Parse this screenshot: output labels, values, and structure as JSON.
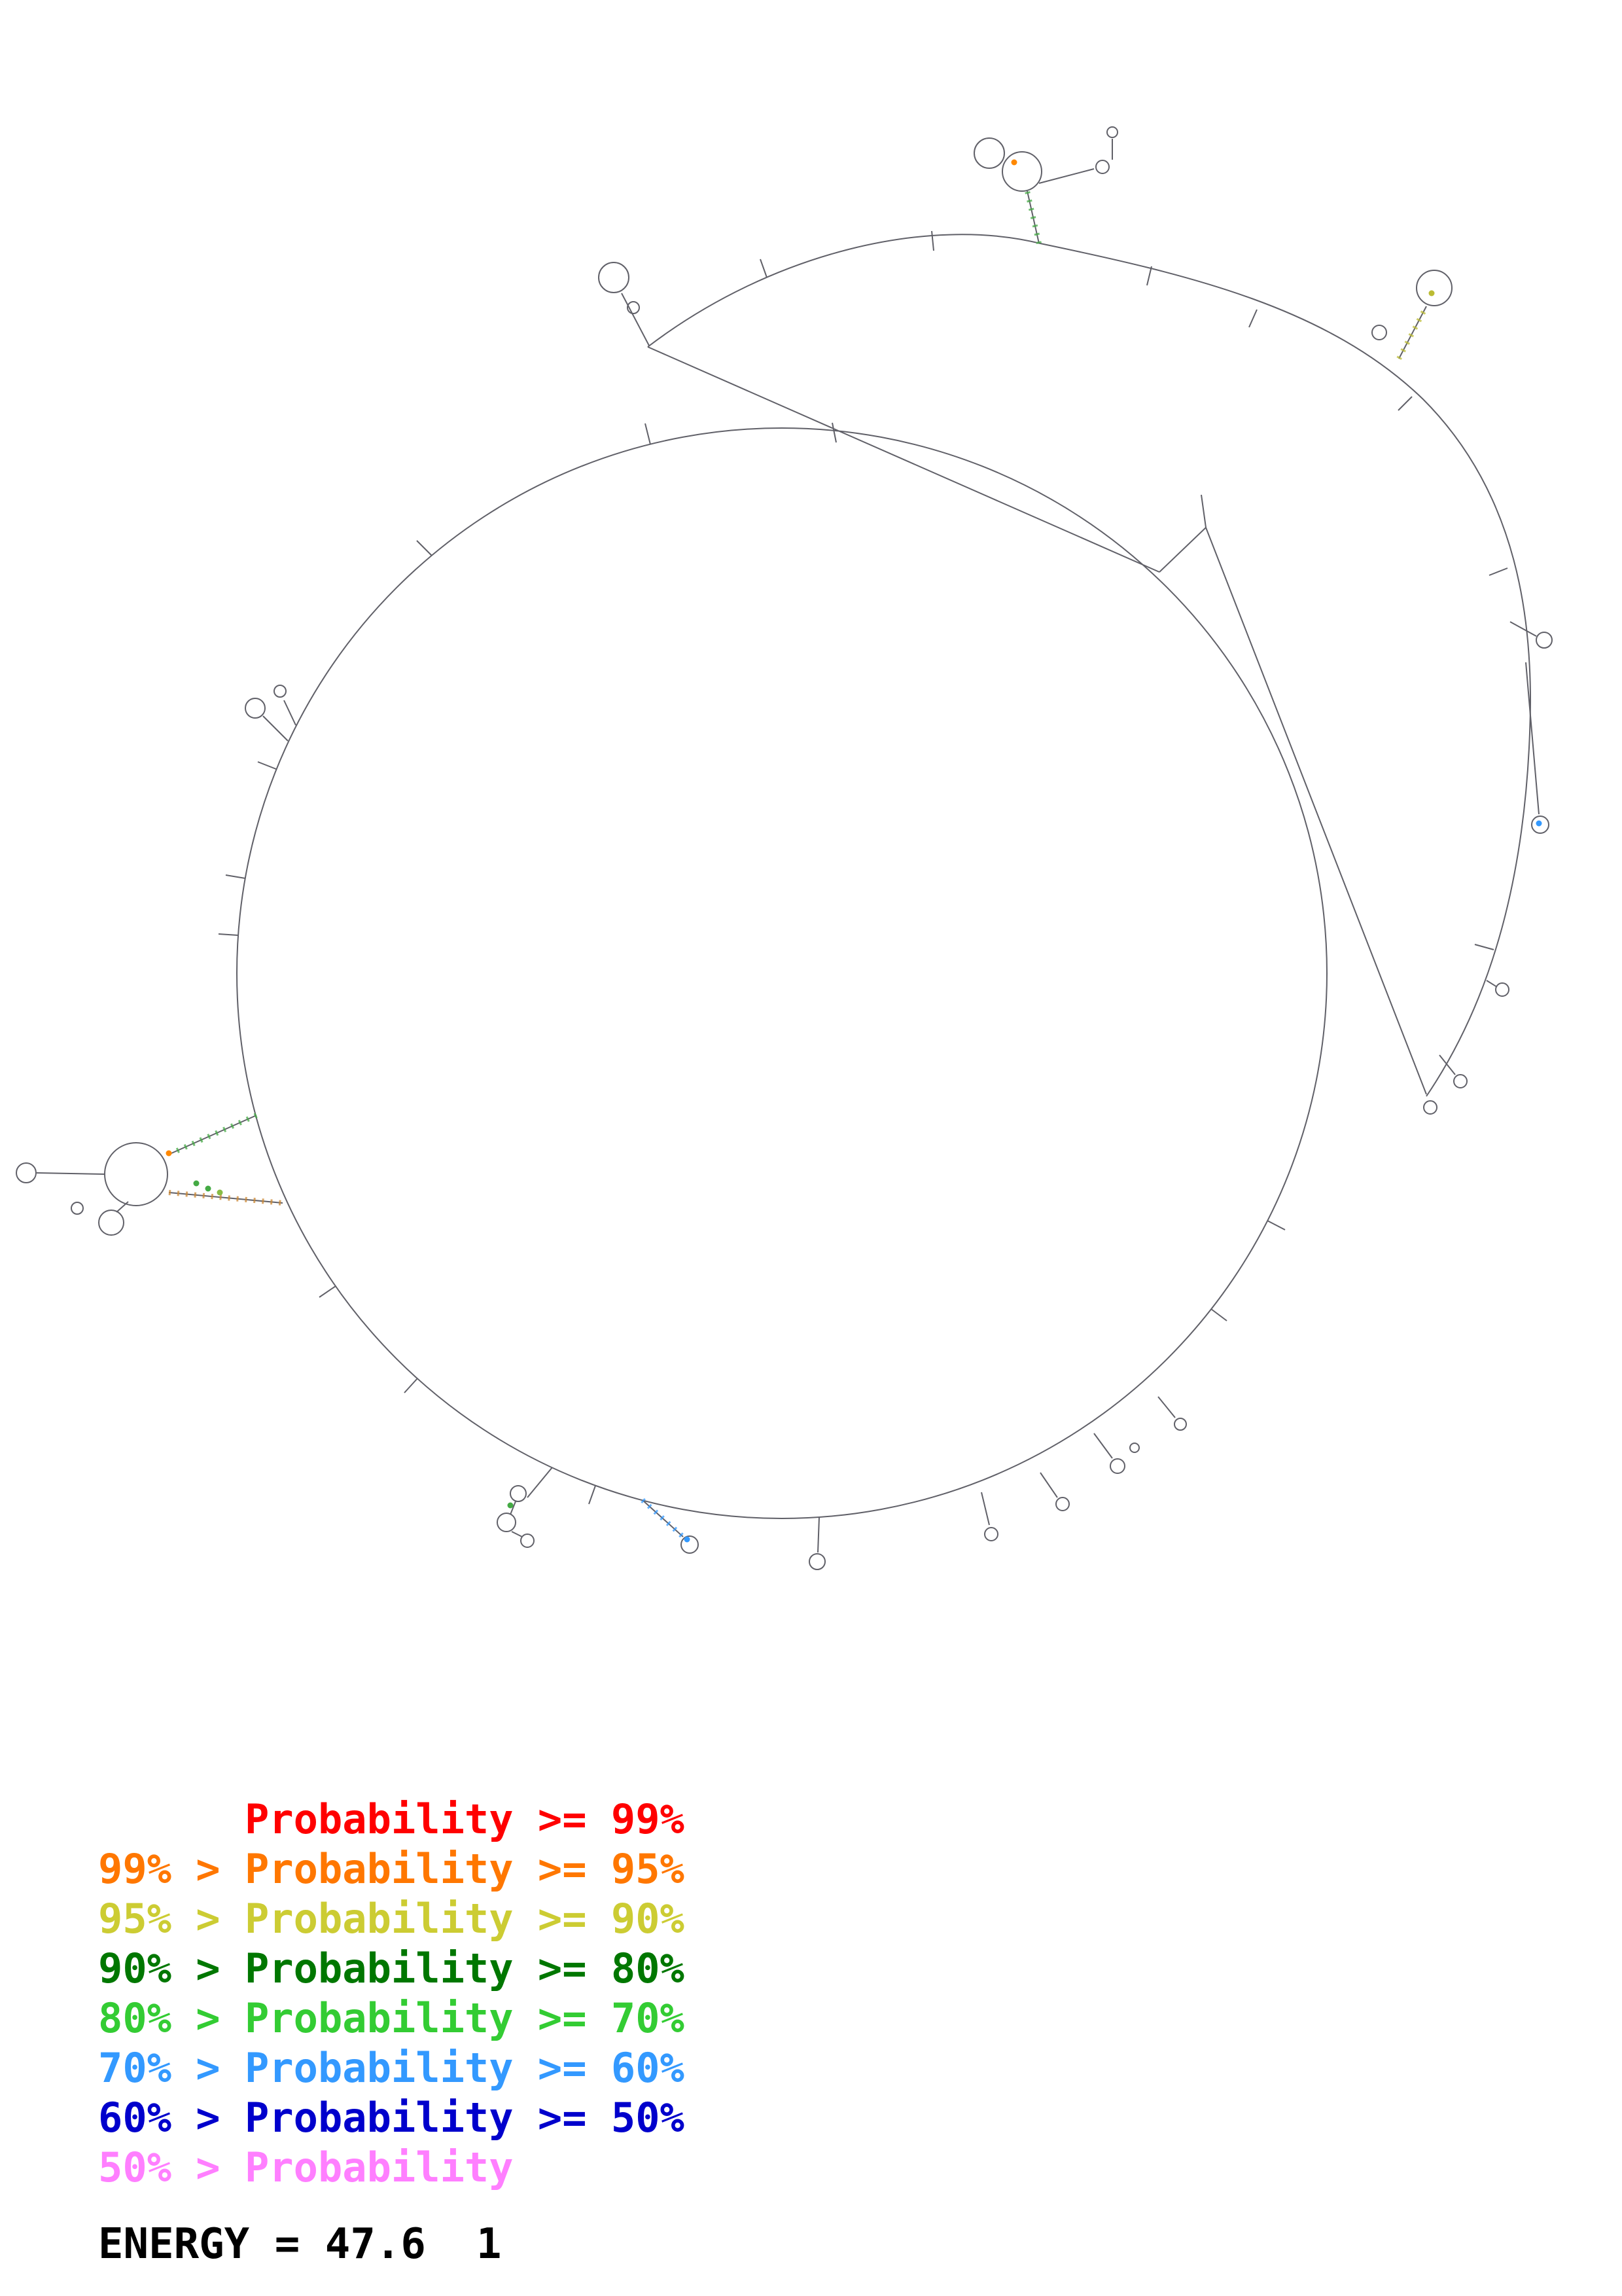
{
  "figure": {
    "type": "rna-secondary-structure-probability-plot",
    "backbone_color": "#606068",
    "accent_colors": {
      "green": "#44aa44",
      "light_green": "#88bb44",
      "orange": "#ff8800",
      "olive": "#bbbb33",
      "sky_blue": "#3399ff"
    }
  },
  "legend": {
    "entries": [
      {
        "text": "      Probability >= 99%",
        "color": "#ff0000"
      },
      {
        "text": "99% > Probability >= 95%",
        "color": "#ff7700"
      },
      {
        "text": "95% > Probability >= 90%",
        "color": "#cccc33"
      },
      {
        "text": "90% > Probability >= 80%",
        "color": "#007700"
      },
      {
        "text": "80% > Probability >= 70%",
        "color": "#33cc33"
      },
      {
        "text": "70% > Probability >= 60%",
        "color": "#3399ff"
      },
      {
        "text": "60% > Probability >= 50%",
        "color": "#0000cc"
      },
      {
        "text": "50% > Probability",
        "color": "#ff7fff"
      }
    ]
  },
  "energy": {
    "label": "ENERGY = 47.6  1"
  }
}
